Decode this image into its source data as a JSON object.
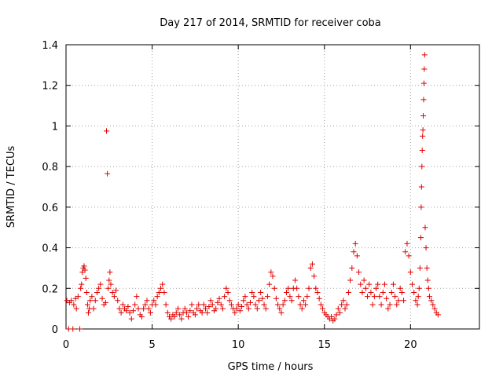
{
  "chart_data": {
    "type": "scatter",
    "title": "Day 217 of 2014, SRMTID for receiver coba",
    "xlabel": "GPS time / hours",
    "ylabel": "SRMTID / TECUs",
    "xlim": [
      0,
      24
    ],
    "ylim": [
      0,
      1.4
    ],
    "x_ticks": [
      0,
      5,
      10,
      15,
      20
    ],
    "x_tick_labels": [
      "0",
      "5",
      "10",
      "15",
      "20"
    ],
    "y_ticks": [
      0,
      0.2,
      0.4,
      0.6,
      0.8,
      1.0,
      1.2,
      1.4
    ],
    "y_tick_labels": [
      "0",
      "0.2",
      "0.4",
      "0.6",
      "0.8",
      "1",
      "1.2",
      "1.4"
    ],
    "grid": true,
    "marker": "+",
    "color": "#e00000",
    "series": [
      {
        "name": "coba",
        "points": [
          [
            0.05,
            0.14
          ],
          [
            0.15,
            0.0
          ],
          [
            0.2,
            0.13
          ],
          [
            0.3,
            0.14
          ],
          [
            0.4,
            0.0
          ],
          [
            0.45,
            0.12
          ],
          [
            0.55,
            0.15
          ],
          [
            0.6,
            0.1
          ],
          [
            0.7,
            0.16
          ],
          [
            0.8,
            0.0
          ],
          [
            0.85,
            0.2
          ],
          [
            0.9,
            0.22
          ],
          [
            0.95,
            0.28
          ],
          [
            1.0,
            0.3
          ],
          [
            1.05,
            0.31
          ],
          [
            1.1,
            0.29
          ],
          [
            1.15,
            0.25
          ],
          [
            1.2,
            0.18
          ],
          [
            1.25,
            0.12
          ],
          [
            1.3,
            0.08
          ],
          [
            1.35,
            0.1
          ],
          [
            1.4,
            0.14
          ],
          [
            1.5,
            0.16
          ],
          [
            1.6,
            0.1
          ],
          [
            1.7,
            0.14
          ],
          [
            1.8,
            0.18
          ],
          [
            1.9,
            0.2
          ],
          [
            2.0,
            0.22
          ],
          [
            2.1,
            0.15
          ],
          [
            2.2,
            0.12
          ],
          [
            2.3,
            0.13
          ],
          [
            2.35,
            0.975
          ],
          [
            2.4,
            0.765
          ],
          [
            2.45,
            0.2
          ],
          [
            2.5,
            0.24
          ],
          [
            2.55,
            0.28
          ],
          [
            2.6,
            0.22
          ],
          [
            2.7,
            0.18
          ],
          [
            2.8,
            0.16
          ],
          [
            2.9,
            0.19
          ],
          [
            3.0,
            0.14
          ],
          [
            3.1,
            0.1
          ],
          [
            3.2,
            0.08
          ],
          [
            3.3,
            0.12
          ],
          [
            3.4,
            0.1
          ],
          [
            3.5,
            0.09
          ],
          [
            3.6,
            0.11
          ],
          [
            3.7,
            0.08
          ],
          [
            3.8,
            0.05
          ],
          [
            3.9,
            0.09
          ],
          [
            4.0,
            0.12
          ],
          [
            4.1,
            0.16
          ],
          [
            4.2,
            0.1
          ],
          [
            4.3,
            0.07
          ],
          [
            4.4,
            0.06
          ],
          [
            4.5,
            0.1
          ],
          [
            4.6,
            0.12
          ],
          [
            4.7,
            0.14
          ],
          [
            4.8,
            0.1
          ],
          [
            4.9,
            0.08
          ],
          [
            5.0,
            0.12
          ],
          [
            5.1,
            0.14
          ],
          [
            5.2,
            0.12
          ],
          [
            5.3,
            0.16
          ],
          [
            5.4,
            0.18
          ],
          [
            5.5,
            0.2
          ],
          [
            5.6,
            0.22
          ],
          [
            5.7,
            0.18
          ],
          [
            5.8,
            0.12
          ],
          [
            5.9,
            0.08
          ],
          [
            6.0,
            0.06
          ],
          [
            6.1,
            0.05
          ],
          [
            6.2,
            0.07
          ],
          [
            6.3,
            0.06
          ],
          [
            6.4,
            0.08
          ],
          [
            6.5,
            0.1
          ],
          [
            6.6,
            0.07
          ],
          [
            6.7,
            0.05
          ],
          [
            6.8,
            0.08
          ],
          [
            6.9,
            0.1
          ],
          [
            7.0,
            0.08
          ],
          [
            7.1,
            0.06
          ],
          [
            7.2,
            0.09
          ],
          [
            7.3,
            0.12
          ],
          [
            7.4,
            0.08
          ],
          [
            7.5,
            0.07
          ],
          [
            7.6,
            0.1
          ],
          [
            7.7,
            0.12
          ],
          [
            7.8,
            0.09
          ],
          [
            7.9,
            0.08
          ],
          [
            8.0,
            0.12
          ],
          [
            8.1,
            0.1
          ],
          [
            8.2,
            0.08
          ],
          [
            8.3,
            0.11
          ],
          [
            8.4,
            0.14
          ],
          [
            8.5,
            0.12
          ],
          [
            8.6,
            0.09
          ],
          [
            8.7,
            0.1
          ],
          [
            8.8,
            0.13
          ],
          [
            8.9,
            0.15
          ],
          [
            9.0,
            0.12
          ],
          [
            9.1,
            0.1
          ],
          [
            9.2,
            0.16
          ],
          [
            9.3,
            0.2
          ],
          [
            9.4,
            0.18
          ],
          [
            9.5,
            0.14
          ],
          [
            9.6,
            0.12
          ],
          [
            9.7,
            0.1
          ],
          [
            9.8,
            0.08
          ],
          [
            9.9,
            0.1
          ],
          [
            10.0,
            0.12
          ],
          [
            10.1,
            0.09
          ],
          [
            10.2,
            0.11
          ],
          [
            10.3,
            0.14
          ],
          [
            10.4,
            0.16
          ],
          [
            10.5,
            0.12
          ],
          [
            10.6,
            0.1
          ],
          [
            10.7,
            0.13
          ],
          [
            10.8,
            0.18
          ],
          [
            10.9,
            0.16
          ],
          [
            11.0,
            0.12
          ],
          [
            11.1,
            0.1
          ],
          [
            11.2,
            0.14
          ],
          [
            11.3,
            0.18
          ],
          [
            11.4,
            0.15
          ],
          [
            11.5,
            0.12
          ],
          [
            11.6,
            0.1
          ],
          [
            11.7,
            0.16
          ],
          [
            11.8,
            0.22
          ],
          [
            11.9,
            0.28
          ],
          [
            12.0,
            0.26
          ],
          [
            12.1,
            0.2
          ],
          [
            12.2,
            0.15
          ],
          [
            12.3,
            0.12
          ],
          [
            12.4,
            0.1
          ],
          [
            12.5,
            0.08
          ],
          [
            12.6,
            0.12
          ],
          [
            12.7,
            0.14
          ],
          [
            12.8,
            0.18
          ],
          [
            12.9,
            0.2
          ],
          [
            13.0,
            0.16
          ],
          [
            13.1,
            0.14
          ],
          [
            13.2,
            0.2
          ],
          [
            13.3,
            0.24
          ],
          [
            13.4,
            0.2
          ],
          [
            13.5,
            0.16
          ],
          [
            13.6,
            0.12
          ],
          [
            13.7,
            0.1
          ],
          [
            13.8,
            0.14
          ],
          [
            13.9,
            0.12
          ],
          [
            14.0,
            0.16
          ],
          [
            14.1,
            0.2
          ],
          [
            14.2,
            0.3
          ],
          [
            14.3,
            0.32
          ],
          [
            14.4,
            0.26
          ],
          [
            14.5,
            0.2
          ],
          [
            14.6,
            0.18
          ],
          [
            14.7,
            0.15
          ],
          [
            14.8,
            0.12
          ],
          [
            14.9,
            0.1
          ],
          [
            15.0,
            0.08
          ],
          [
            15.1,
            0.07
          ],
          [
            15.2,
            0.06
          ],
          [
            15.3,
            0.05
          ],
          [
            15.4,
            0.06
          ],
          [
            15.5,
            0.04
          ],
          [
            15.6,
            0.05
          ],
          [
            15.7,
            0.07
          ],
          [
            15.8,
            0.1
          ],
          [
            15.9,
            0.08
          ],
          [
            16.0,
            0.12
          ],
          [
            16.1,
            0.14
          ],
          [
            16.2,
            0.1
          ],
          [
            16.3,
            0.12
          ],
          [
            16.4,
            0.18
          ],
          [
            16.5,
            0.24
          ],
          [
            16.6,
            0.3
          ],
          [
            16.7,
            0.38
          ],
          [
            16.8,
            0.42
          ],
          [
            16.9,
            0.36
          ],
          [
            17.0,
            0.28
          ],
          [
            17.1,
            0.22
          ],
          [
            17.2,
            0.18
          ],
          [
            17.3,
            0.24
          ],
          [
            17.4,
            0.2
          ],
          [
            17.5,
            0.16
          ],
          [
            17.6,
            0.22
          ],
          [
            17.7,
            0.18
          ],
          [
            17.8,
            0.12
          ],
          [
            17.9,
            0.16
          ],
          [
            18.0,
            0.2
          ],
          [
            18.1,
            0.22
          ],
          [
            18.2,
            0.16
          ],
          [
            18.3,
            0.12
          ],
          [
            18.4,
            0.18
          ],
          [
            18.5,
            0.22
          ],
          [
            18.6,
            0.15
          ],
          [
            18.7,
            0.1
          ],
          [
            18.8,
            0.12
          ],
          [
            18.9,
            0.18
          ],
          [
            19.0,
            0.22
          ],
          [
            19.1,
            0.16
          ],
          [
            19.2,
            0.12
          ],
          [
            19.3,
            0.14
          ],
          [
            19.4,
            0.2
          ],
          [
            19.5,
            0.18
          ],
          [
            19.6,
            0.14
          ],
          [
            19.7,
            0.38
          ],
          [
            19.8,
            0.42
          ],
          [
            19.9,
            0.36
          ],
          [
            20.0,
            0.28
          ],
          [
            20.1,
            0.22
          ],
          [
            20.2,
            0.18
          ],
          [
            20.3,
            0.14
          ],
          [
            20.4,
            0.12
          ],
          [
            20.45,
            0.16
          ],
          [
            20.5,
            0.2
          ],
          [
            20.55,
            0.3
          ],
          [
            20.6,
            0.45
          ],
          [
            20.62,
            0.6
          ],
          [
            20.64,
            0.7
          ],
          [
            20.66,
            0.8
          ],
          [
            20.68,
            0.88
          ],
          [
            20.7,
            0.95
          ],
          [
            20.72,
            0.98
          ],
          [
            20.74,
            1.05
          ],
          [
            20.76,
            1.13
          ],
          [
            20.78,
            1.21
          ],
          [
            20.8,
            1.28
          ],
          [
            20.82,
            1.35
          ],
          [
            20.85,
            0.5
          ],
          [
            20.9,
            0.4
          ],
          [
            20.95,
            0.3
          ],
          [
            21.0,
            0.24
          ],
          [
            21.05,
            0.2
          ],
          [
            21.1,
            0.16
          ],
          [
            21.2,
            0.14
          ],
          [
            21.3,
            0.12
          ],
          [
            21.4,
            0.1
          ],
          [
            21.5,
            0.08
          ],
          [
            21.6,
            0.07
          ]
        ]
      }
    ]
  }
}
